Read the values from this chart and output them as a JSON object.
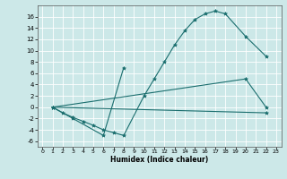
{
  "background_color": "#cce8e8",
  "grid_color": "#ffffff",
  "line_color": "#1a6e6e",
  "xlabel": "Humidex (Indice chaleur)",
  "xlim": [
    -0.5,
    23.5
  ],
  "ylim": [
    -7,
    18
  ],
  "yticks": [
    -6,
    -4,
    -2,
    0,
    2,
    4,
    6,
    8,
    10,
    12,
    14,
    16
  ],
  "xticks": [
    0,
    1,
    2,
    3,
    4,
    5,
    6,
    7,
    8,
    9,
    10,
    11,
    12,
    13,
    14,
    15,
    16,
    17,
    18,
    19,
    20,
    21,
    22,
    23
  ],
  "series": [
    {
      "x": [
        1,
        2,
        3,
        4,
        5,
        6,
        7,
        8,
        10,
        11,
        12,
        13,
        14,
        15,
        16,
        17,
        18,
        20,
        22
      ],
      "y": [
        0,
        -1,
        -1.8,
        -2.5,
        -3.2,
        -4,
        -4.5,
        -5,
        2,
        5,
        8,
        11,
        13.5,
        15.5,
        16.5,
        17,
        16.5,
        12.5,
        9
      ]
    },
    {
      "x": [
        1,
        3,
        6,
        8
      ],
      "y": [
        0,
        -2,
        -5,
        7
      ]
    },
    {
      "x": [
        1,
        22
      ],
      "y": [
        0,
        -1
      ]
    },
    {
      "x": [
        1,
        20,
        22
      ],
      "y": [
        0,
        5,
        0
      ]
    }
  ]
}
